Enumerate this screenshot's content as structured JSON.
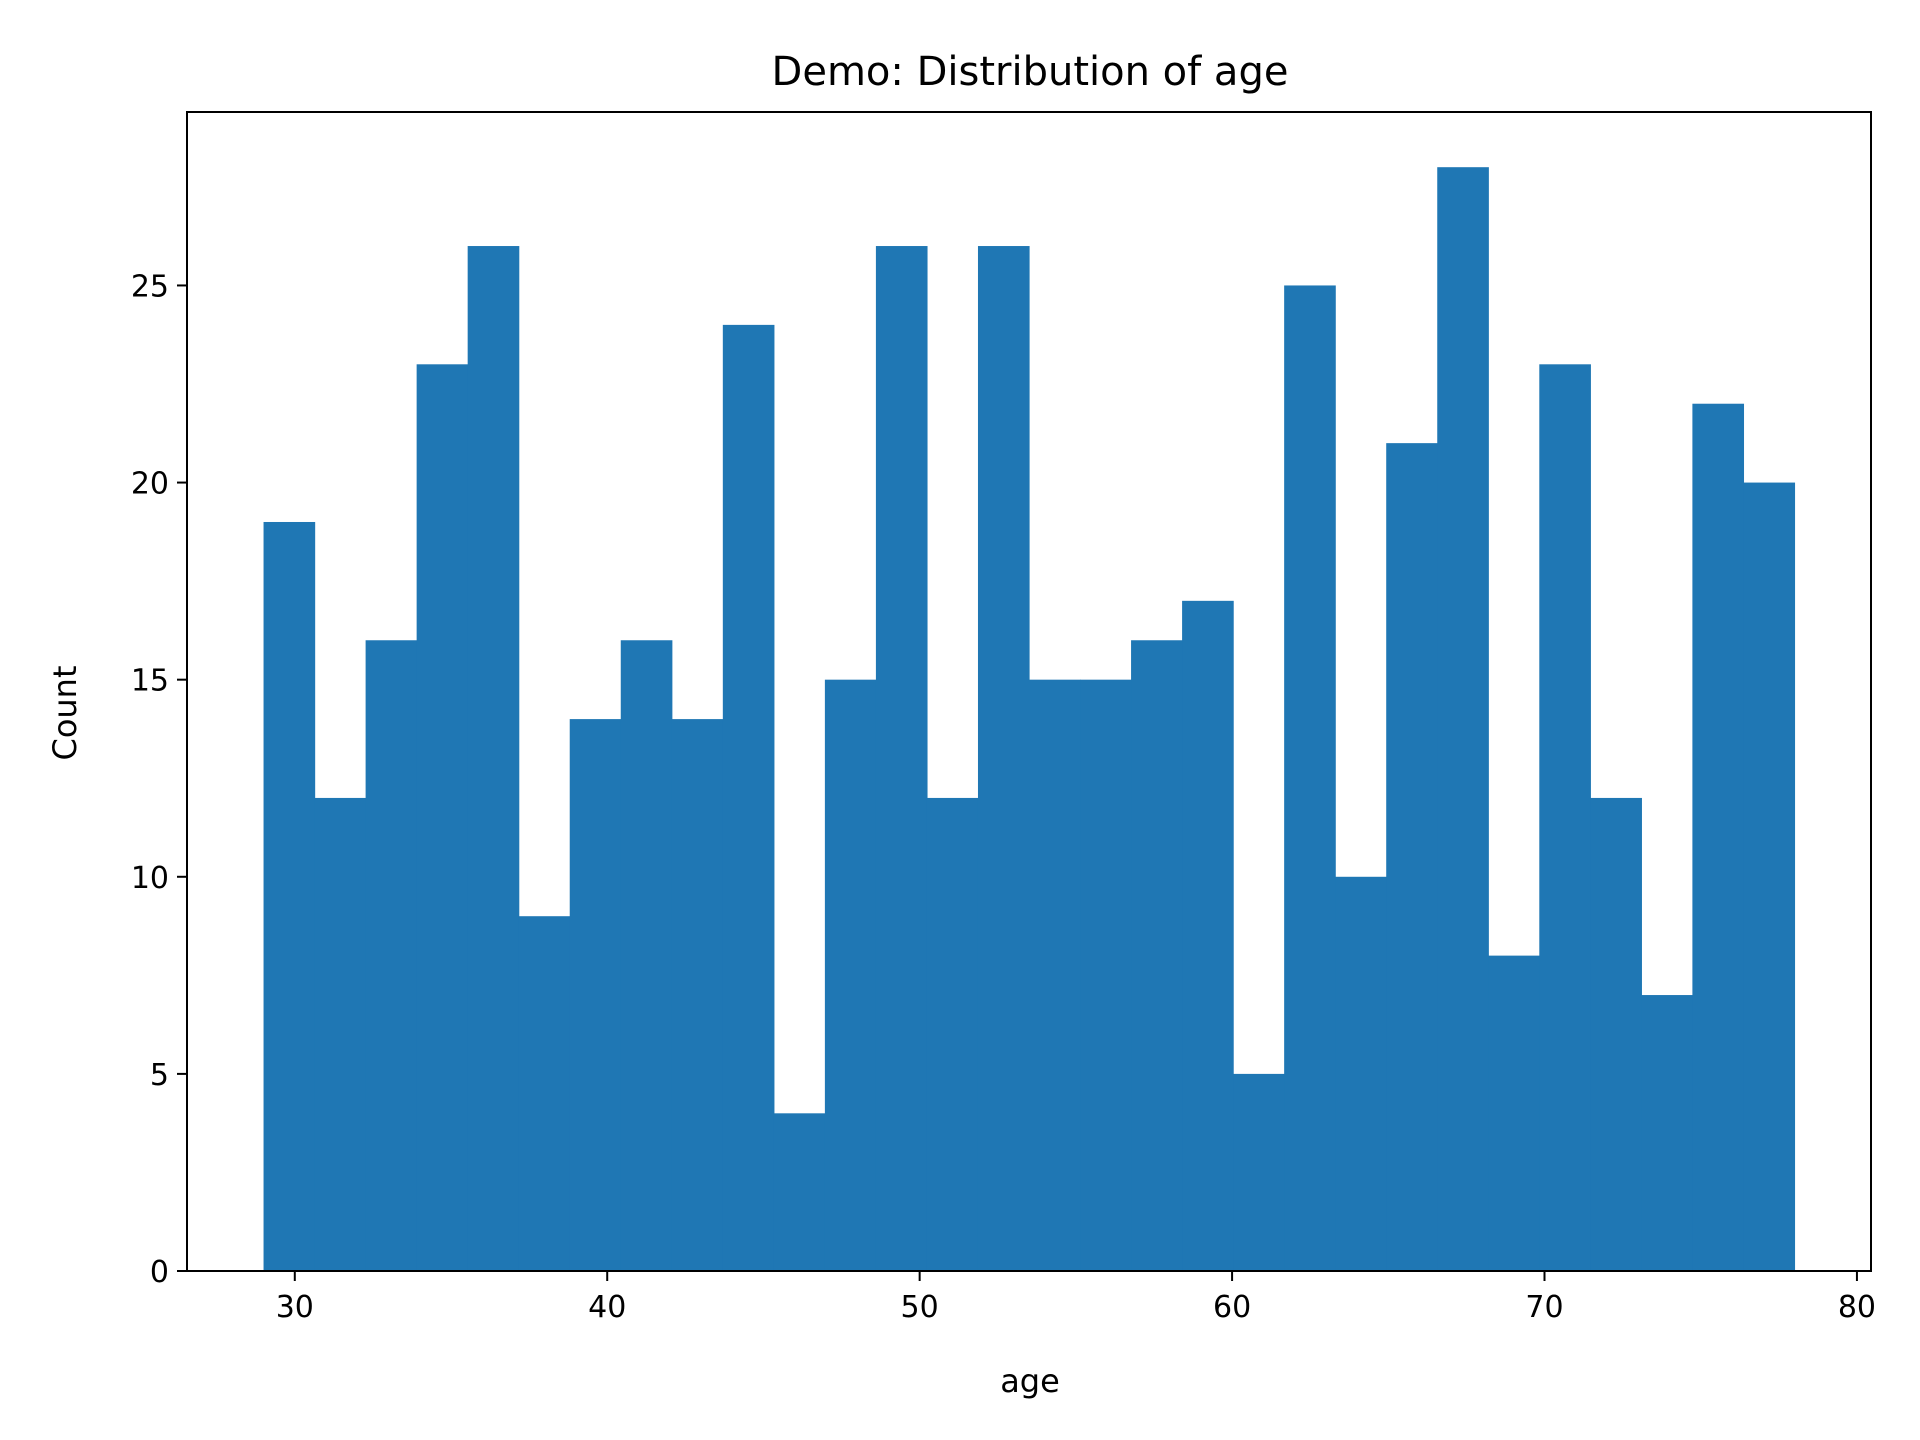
{
  "chart_data": {
    "type": "bar",
    "title": "Demo: Distribution of age",
    "xlabel": "age",
    "ylabel": "Count",
    "bin_start": 29,
    "bin_end": 78,
    "values": [
      19,
      12,
      16,
      23,
      26,
      9,
      14,
      16,
      14,
      24,
      4,
      15,
      26,
      12,
      26,
      15,
      15,
      16,
      17,
      5,
      25,
      10,
      21,
      28,
      8,
      23,
      12,
      7,
      22,
      20
    ],
    "xlim": [
      26.55,
      80.45
    ],
    "ylim": [
      0,
      29.4
    ],
    "xticks": [
      30,
      40,
      50,
      60,
      70,
      80
    ],
    "yticks": [
      0,
      5,
      10,
      15,
      20,
      25
    ],
    "grid": false,
    "bar_color": "#1f77b4"
  }
}
